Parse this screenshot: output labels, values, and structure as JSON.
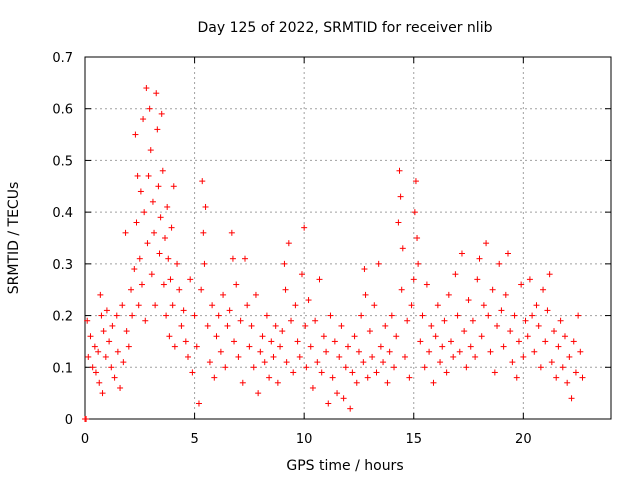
{
  "chart_data": {
    "type": "scatter",
    "title": "Day 125 of 2022, SRMTID for receiver nlib",
    "xlabel": "GPS time / hours",
    "ylabel": "SRMTID / TECUs",
    "xlim": [
      0,
      24
    ],
    "ylim": [
      0,
      0.7
    ],
    "xticks": [
      0,
      5,
      10,
      15,
      20
    ],
    "xtick_labels": [
      "0",
      "5",
      "10",
      "15",
      "20"
    ],
    "yticks": [
      0,
      0.1,
      0.2,
      0.3,
      0.4,
      0.5,
      0.6,
      0.7
    ],
    "ytick_labels": [
      "0",
      "0.1",
      "0.2",
      "0.3",
      "0.4",
      "0.5",
      "0.6",
      "0.7"
    ],
    "grid": true,
    "marker": "+",
    "color": "#ff0000",
    "series": [
      {
        "name": "SRMTID",
        "points": [
          [
            0.0,
            0.0
          ],
          [
            0.05,
            0.0
          ],
          [
            0.1,
            0.19
          ],
          [
            0.15,
            0.12
          ],
          [
            0.25,
            0.16
          ],
          [
            0.35,
            0.1
          ],
          [
            0.45,
            0.14
          ],
          [
            0.5,
            0.09
          ],
          [
            0.6,
            0.13
          ],
          [
            0.65,
            0.07
          ],
          [
            0.7,
            0.24
          ],
          [
            0.75,
            0.2
          ],
          [
            0.8,
            0.05
          ],
          [
            0.85,
            0.17
          ],
          [
            0.95,
            0.12
          ],
          [
            1.0,
            0.21
          ],
          [
            1.1,
            0.15
          ],
          [
            1.2,
            0.1
          ],
          [
            1.25,
            0.18
          ],
          [
            1.35,
            0.08
          ],
          [
            1.45,
            0.2
          ],
          [
            1.5,
            0.13
          ],
          [
            1.6,
            0.06
          ],
          [
            1.7,
            0.22
          ],
          [
            1.75,
            0.11
          ],
          [
            1.85,
            0.36
          ],
          [
            1.9,
            0.17
          ],
          [
            2.0,
            0.14
          ],
          [
            2.1,
            0.25
          ],
          [
            2.15,
            0.2
          ],
          [
            2.25,
            0.29
          ],
          [
            2.3,
            0.55
          ],
          [
            2.35,
            0.38
          ],
          [
            2.4,
            0.47
          ],
          [
            2.45,
            0.22
          ],
          [
            2.5,
            0.31
          ],
          [
            2.55,
            0.44
          ],
          [
            2.6,
            0.26
          ],
          [
            2.65,
            0.58
          ],
          [
            2.7,
            0.4
          ],
          [
            2.75,
            0.19
          ],
          [
            2.8,
            0.64
          ],
          [
            2.85,
            0.34
          ],
          [
            2.9,
            0.47
          ],
          [
            2.95,
            0.6
          ],
          [
            3.0,
            0.52
          ],
          [
            3.05,
            0.28
          ],
          [
            3.1,
            0.42
          ],
          [
            3.15,
            0.36
          ],
          [
            3.2,
            0.22
          ],
          [
            3.25,
            0.63
          ],
          [
            3.3,
            0.56
          ],
          [
            3.35,
            0.45
          ],
          [
            3.4,
            0.32
          ],
          [
            3.45,
            0.39
          ],
          [
            3.5,
            0.59
          ],
          [
            3.55,
            0.48
          ],
          [
            3.6,
            0.26
          ],
          [
            3.65,
            0.35
          ],
          [
            3.7,
            0.2
          ],
          [
            3.75,
            0.41
          ],
          [
            3.8,
            0.31
          ],
          [
            3.85,
            0.16
          ],
          [
            3.9,
            0.27
          ],
          [
            3.95,
            0.37
          ],
          [
            4.0,
            0.22
          ],
          [
            4.05,
            0.45
          ],
          [
            4.1,
            0.14
          ],
          [
            4.2,
            0.3
          ],
          [
            4.3,
            0.25
          ],
          [
            4.4,
            0.18
          ],
          [
            4.5,
            0.21
          ],
          [
            4.6,
            0.15
          ],
          [
            4.7,
            0.12
          ],
          [
            4.8,
            0.27
          ],
          [
            4.9,
            0.09
          ],
          [
            5.0,
            0.2
          ],
          [
            5.1,
            0.14
          ],
          [
            5.2,
            0.03
          ],
          [
            5.3,
            0.25
          ],
          [
            5.35,
            0.46
          ],
          [
            5.4,
            0.36
          ],
          [
            5.45,
            0.3
          ],
          [
            5.5,
            0.41
          ],
          [
            5.6,
            0.18
          ],
          [
            5.7,
            0.11
          ],
          [
            5.8,
            0.22
          ],
          [
            5.9,
            0.08
          ],
          [
            6.0,
            0.16
          ],
          [
            6.1,
            0.2
          ],
          [
            6.2,
            0.13
          ],
          [
            6.3,
            0.24
          ],
          [
            6.4,
            0.1
          ],
          [
            6.5,
            0.18
          ],
          [
            6.6,
            0.21
          ],
          [
            6.7,
            0.36
          ],
          [
            6.75,
            0.31
          ],
          [
            6.8,
            0.15
          ],
          [
            6.9,
            0.26
          ],
          [
            7.0,
            0.12
          ],
          [
            7.1,
            0.19
          ],
          [
            7.2,
            0.07
          ],
          [
            7.3,
            0.31
          ],
          [
            7.4,
            0.22
          ],
          [
            7.5,
            0.14
          ],
          [
            7.6,
            0.18
          ],
          [
            7.7,
            0.1
          ],
          [
            7.8,
            0.24
          ],
          [
            7.9,
            0.05
          ],
          [
            8.0,
            0.13
          ],
          [
            8.1,
            0.16
          ],
          [
            8.2,
            0.11
          ],
          [
            8.3,
            0.2
          ],
          [
            8.4,
            0.08
          ],
          [
            8.5,
            0.15
          ],
          [
            8.6,
            0.12
          ],
          [
            8.7,
            0.18
          ],
          [
            8.8,
            0.07
          ],
          [
            8.9,
            0.14
          ],
          [
            9.0,
            0.17
          ],
          [
            9.1,
            0.3
          ],
          [
            9.15,
            0.25
          ],
          [
            9.2,
            0.11
          ],
          [
            9.3,
            0.34
          ],
          [
            9.4,
            0.19
          ],
          [
            9.5,
            0.09
          ],
          [
            9.6,
            0.22
          ],
          [
            9.7,
            0.15
          ],
          [
            9.8,
            0.12
          ],
          [
            9.9,
            0.28
          ],
          [
            10.0,
            0.37
          ],
          [
            10.05,
            0.18
          ],
          [
            10.1,
            0.1
          ],
          [
            10.2,
            0.23
          ],
          [
            10.3,
            0.14
          ],
          [
            10.4,
            0.06
          ],
          [
            10.5,
            0.19
          ],
          [
            10.6,
            0.11
          ],
          [
            10.7,
            0.27
          ],
          [
            10.8,
            0.09
          ],
          [
            10.9,
            0.16
          ],
          [
            11.0,
            0.13
          ],
          [
            11.1,
            0.03
          ],
          [
            11.2,
            0.2
          ],
          [
            11.3,
            0.08
          ],
          [
            11.4,
            0.15
          ],
          [
            11.5,
            0.05
          ],
          [
            11.6,
            0.12
          ],
          [
            11.7,
            0.18
          ],
          [
            11.8,
            0.04
          ],
          [
            11.9,
            0.1
          ],
          [
            12.0,
            0.14
          ],
          [
            12.1,
            0.02
          ],
          [
            12.2,
            0.09
          ],
          [
            12.3,
            0.16
          ],
          [
            12.4,
            0.07
          ],
          [
            12.5,
            0.13
          ],
          [
            12.6,
            0.2
          ],
          [
            12.7,
            0.11
          ],
          [
            12.75,
            0.29
          ],
          [
            12.8,
            0.24
          ],
          [
            12.9,
            0.08
          ],
          [
            13.0,
            0.17
          ],
          [
            13.1,
            0.12
          ],
          [
            13.2,
            0.22
          ],
          [
            13.3,
            0.09
          ],
          [
            13.4,
            0.3
          ],
          [
            13.5,
            0.14
          ],
          [
            13.6,
            0.11
          ],
          [
            13.7,
            0.18
          ],
          [
            13.8,
            0.07
          ],
          [
            13.9,
            0.13
          ],
          [
            14.0,
            0.2
          ],
          [
            14.1,
            0.1
          ],
          [
            14.2,
            0.16
          ],
          [
            14.3,
            0.38
          ],
          [
            14.35,
            0.48
          ],
          [
            14.4,
            0.43
          ],
          [
            14.45,
            0.25
          ],
          [
            14.5,
            0.33
          ],
          [
            14.6,
            0.12
          ],
          [
            14.7,
            0.19
          ],
          [
            14.8,
            0.08
          ],
          [
            14.9,
            0.22
          ],
          [
            15.0,
            0.27
          ],
          [
            15.05,
            0.4
          ],
          [
            15.1,
            0.46
          ],
          [
            15.15,
            0.35
          ],
          [
            15.2,
            0.3
          ],
          [
            15.3,
            0.15
          ],
          [
            15.4,
            0.2
          ],
          [
            15.5,
            0.1
          ],
          [
            15.6,
            0.26
          ],
          [
            15.7,
            0.13
          ],
          [
            15.8,
            0.18
          ],
          [
            15.9,
            0.07
          ],
          [
            16.0,
            0.16
          ],
          [
            16.1,
            0.22
          ],
          [
            16.2,
            0.11
          ],
          [
            16.3,
            0.14
          ],
          [
            16.4,
            0.19
          ],
          [
            16.5,
            0.09
          ],
          [
            16.6,
            0.24
          ],
          [
            16.7,
            0.15
          ],
          [
            16.8,
            0.12
          ],
          [
            16.9,
            0.28
          ],
          [
            17.0,
            0.2
          ],
          [
            17.1,
            0.13
          ],
          [
            17.2,
            0.32
          ],
          [
            17.3,
            0.17
          ],
          [
            17.4,
            0.1
          ],
          [
            17.5,
            0.23
          ],
          [
            17.6,
            0.14
          ],
          [
            17.7,
            0.19
          ],
          [
            17.8,
            0.12
          ],
          [
            17.9,
            0.27
          ],
          [
            18.0,
            0.31
          ],
          [
            18.1,
            0.16
          ],
          [
            18.2,
            0.22
          ],
          [
            18.3,
            0.34
          ],
          [
            18.4,
            0.2
          ],
          [
            18.5,
            0.13
          ],
          [
            18.6,
            0.25
          ],
          [
            18.7,
            0.09
          ],
          [
            18.8,
            0.18
          ],
          [
            18.9,
            0.3
          ],
          [
            19.0,
            0.21
          ],
          [
            19.1,
            0.14
          ],
          [
            19.2,
            0.24
          ],
          [
            19.3,
            0.32
          ],
          [
            19.4,
            0.17
          ],
          [
            19.5,
            0.11
          ],
          [
            19.6,
            0.2
          ],
          [
            19.7,
            0.08
          ],
          [
            19.8,
            0.15
          ],
          [
            19.9,
            0.26
          ],
          [
            20.0,
            0.12
          ],
          [
            20.1,
            0.19
          ],
          [
            20.2,
            0.16
          ],
          [
            20.3,
            0.27
          ],
          [
            20.4,
            0.2
          ],
          [
            20.5,
            0.13
          ],
          [
            20.6,
            0.22
          ],
          [
            20.7,
            0.18
          ],
          [
            20.8,
            0.1
          ],
          [
            20.9,
            0.25
          ],
          [
            21.0,
            0.15
          ],
          [
            21.1,
            0.21
          ],
          [
            21.2,
            0.28
          ],
          [
            21.3,
            0.11
          ],
          [
            21.4,
            0.17
          ],
          [
            21.5,
            0.08
          ],
          [
            21.6,
            0.14
          ],
          [
            21.7,
            0.19
          ],
          [
            21.8,
            0.1
          ],
          [
            21.9,
            0.16
          ],
          [
            22.0,
            0.07
          ],
          [
            22.1,
            0.12
          ],
          [
            22.2,
            0.04
          ],
          [
            22.3,
            0.15
          ],
          [
            22.4,
            0.09
          ],
          [
            22.5,
            0.2
          ],
          [
            22.6,
            0.13
          ],
          [
            22.7,
            0.08
          ]
        ]
      }
    ]
  }
}
